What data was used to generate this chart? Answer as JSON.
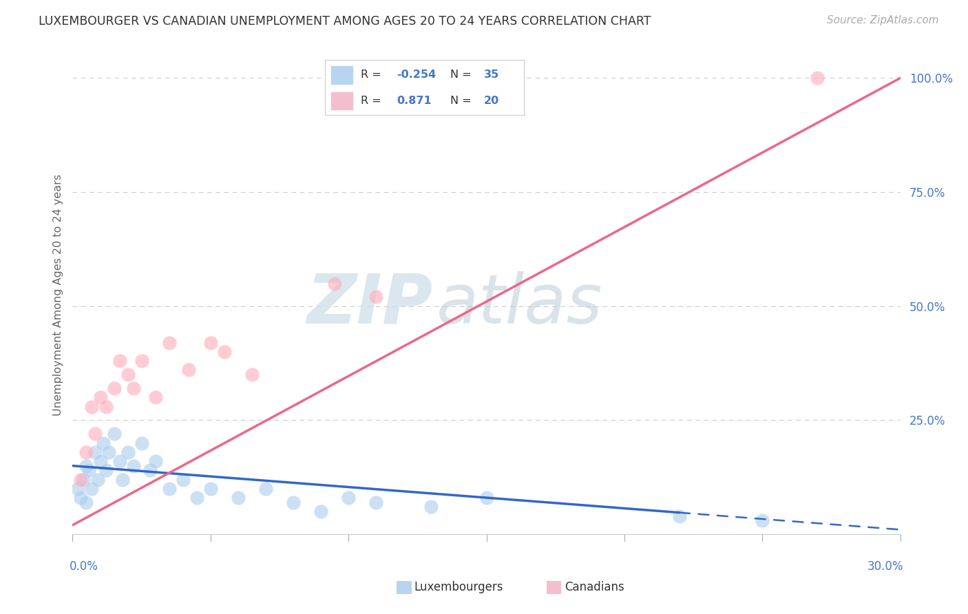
{
  "title": "LUXEMBOURGER VS CANADIAN UNEMPLOYMENT AMONG AGES 20 TO 24 YEARS CORRELATION CHART",
  "source_text": "Source: ZipAtlas.com",
  "ylabel": "Unemployment Among Ages 20 to 24 years",
  "watermark_zip": "ZIP",
  "watermark_atlas": "atlas",
  "blue_color": "#aaccee",
  "blue_line_color": "#3366cc",
  "pink_color": "#ffaabb",
  "pink_line_color": "#ee6688",
  "background_color": "#ffffff",
  "grid_color": "#cccccc",
  "title_color": "#333333",
  "source_color": "#aaaaaa",
  "label_color": "#4477cc",
  "tick_text_color": "#555555",
  "legend_text_dark": "#333333",
  "legend_text_blue": "#4477cc",
  "xmin": 0.0,
  "xmax": 30.0,
  "ymin": 0.0,
  "ymax": 105.0,
  "blue_R": -0.254,
  "blue_N": 35,
  "pink_R": 0.871,
  "pink_N": 20,
  "blue_x": [
    0.2,
    0.3,
    0.4,
    0.5,
    0.5,
    0.6,
    0.7,
    0.8,
    0.9,
    1.0,
    1.1,
    1.2,
    1.3,
    1.5,
    1.7,
    1.8,
    2.0,
    2.2,
    2.5,
    2.8,
    3.0,
    3.5,
    4.0,
    4.5,
    5.0,
    6.0,
    7.0,
    8.0,
    9.0,
    10.0,
    11.0,
    13.0,
    15.0,
    22.0,
    25.0
  ],
  "blue_y": [
    10,
    8,
    12,
    15,
    7,
    14,
    10,
    18,
    12,
    16,
    20,
    14,
    18,
    22,
    16,
    12,
    18,
    15,
    20,
    14,
    16,
    10,
    12,
    8,
    10,
    8,
    10,
    7,
    5,
    8,
    7,
    6,
    8,
    4,
    3
  ],
  "pink_x": [
    0.3,
    0.5,
    0.7,
    0.8,
    1.0,
    1.2,
    1.5,
    1.7,
    2.0,
    2.2,
    2.5,
    3.0,
    3.5,
    4.2,
    5.0,
    5.5,
    6.5,
    9.5,
    11.0,
    27.0
  ],
  "pink_y": [
    12,
    18,
    28,
    22,
    30,
    28,
    32,
    38,
    35,
    32,
    38,
    30,
    42,
    36,
    42,
    40,
    35,
    55,
    52,
    100
  ],
  "blue_line_x0": 0.0,
  "blue_line_x_solid_end": 22.0,
  "blue_line_x1": 30.0,
  "blue_line_y0": 15.0,
  "blue_line_y1": 1.0,
  "pink_line_x0": 0.0,
  "pink_line_x1": 30.0,
  "pink_line_y0": 2.0,
  "pink_line_y1": 100.0
}
